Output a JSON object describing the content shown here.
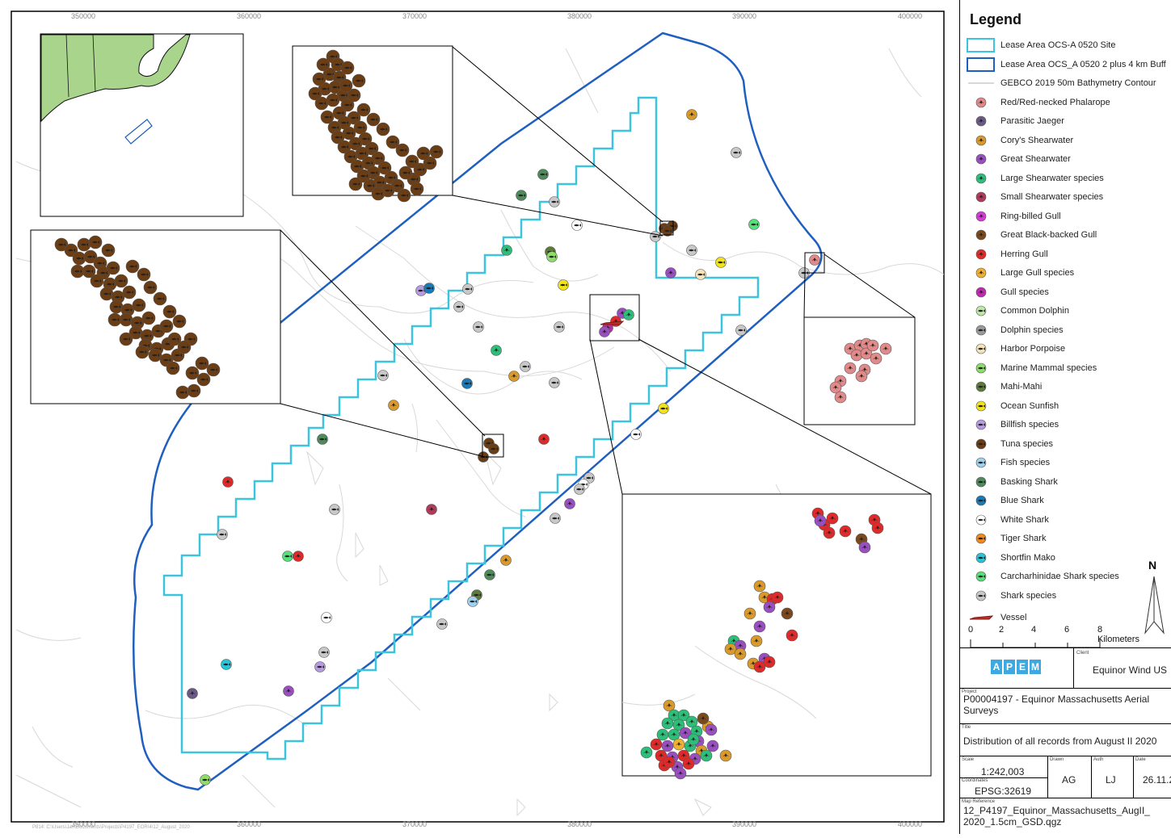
{
  "map": {
    "top_ticks": [
      "350000",
      "360000",
      "370000",
      "380000",
      "390000",
      "400000"
    ],
    "bottom_ticks": [
      "350000",
      "360000",
      "370000",
      "380000",
      "390000",
      "400000"
    ],
    "footer_path": "P814: C:\\Users\\Jan\\Documents\\Projects\\P4197_EOR\\4\\12_August_2020"
  },
  "legend": {
    "title": "Legend",
    "items": [
      {
        "label": "Lease Area OCS-A 0520 Site",
        "symbol": "box",
        "color": "#3cc4de"
      },
      {
        "label": "Lease Area OCS_A 0520 2 plus 4 km Buff",
        "symbol": "box",
        "color": "#1f5fbf"
      },
      {
        "label": "GEBCO 2019 50m Bathymetry Contour",
        "symbol": "line",
        "color": "#cccccc"
      },
      {
        "label": "Red/Red-necked Phalarope",
        "symbol": "bird-icon",
        "color": "#e08a8a"
      },
      {
        "label": "Parasitic Jaeger",
        "symbol": "bird-icon",
        "color": "#6b5a86"
      },
      {
        "label": "Cory's Shearwater",
        "symbol": "bird-icon",
        "color": "#d99a2b"
      },
      {
        "label": "Great Shearwater",
        "symbol": "bird-icon",
        "color": "#9a4fc0"
      },
      {
        "label": "Large Shearwater species",
        "symbol": "bird-icon",
        "color": "#2dbf7a"
      },
      {
        "label": "Small Shearwater species",
        "symbol": "bird-icon",
        "color": "#b03a5b"
      },
      {
        "label": "Ring-billed Gull",
        "symbol": "bird-icon",
        "color": "#d63ad6"
      },
      {
        "label": "Great Black-backed Gull",
        "symbol": "bird-icon",
        "color": "#7a4a1e"
      },
      {
        "label": "Herring Gull",
        "symbol": "bird-icon",
        "color": "#e02a2a"
      },
      {
        "label": "Large Gull species",
        "symbol": "bird-icon",
        "color": "#f0b030"
      },
      {
        "label": "Gull species",
        "symbol": "bird-icon",
        "color": "#c02ab0"
      },
      {
        "label": "Common Dolphin",
        "symbol": "fish-icon",
        "color": "#bde8a8"
      },
      {
        "label": "Dolphin species",
        "symbol": "fish-icon",
        "color": "#9a9a9a"
      },
      {
        "label": "Harbor Porpoise",
        "symbol": "fish-icon",
        "color": "#f4e2b8"
      },
      {
        "label": "Marine Mammal species",
        "symbol": "fish-icon",
        "color": "#8edc6a"
      },
      {
        "label": "Mahi-Mahi",
        "symbol": "fish-icon",
        "color": "#5e7a3a"
      },
      {
        "label": "Ocean Sunfish",
        "symbol": "fish-icon",
        "color": "#f2e21a"
      },
      {
        "label": "Billfish species",
        "symbol": "fish-icon",
        "color": "#b79be0"
      },
      {
        "label": "Tuna species",
        "symbol": "fish-icon",
        "color": "#6b3d14"
      },
      {
        "label": "Fish species",
        "symbol": "fish-icon",
        "color": "#9fd0ee"
      },
      {
        "label": "Basking Shark",
        "symbol": "fish-icon",
        "color": "#4e8a5a"
      },
      {
        "label": "Blue Shark",
        "symbol": "fish-icon",
        "color": "#1a7ab8"
      },
      {
        "label": "White Shark",
        "symbol": "fish-icon",
        "color": "#ffffff"
      },
      {
        "label": "Tiger Shark",
        "symbol": "fish-icon",
        "color": "#f08a1a"
      },
      {
        "label": "Shortfin Mako",
        "symbol": "fish-icon",
        "color": "#2ac4d8"
      },
      {
        "label": "Carcharhinidae Shark species",
        "symbol": "fish-icon",
        "color": "#56e07a"
      },
      {
        "label": "Shark species",
        "symbol": "fish-icon",
        "color": "#c8c8c8"
      },
      {
        "label": "Vessel",
        "symbol": "vessel-icon",
        "color": "#c0302a"
      }
    ]
  },
  "scalebar": {
    "labels": [
      "0",
      "2",
      "4",
      "6",
      "8 Kilometers"
    ]
  },
  "north_label": "N",
  "info": {
    "company_logo_text": "APEM",
    "client_caption": "Client",
    "client": "Equinor Wind US",
    "project_caption": "Project",
    "project": "P00004197 - Equinor Massachusetts Aerial Surveys",
    "title_caption": "Title",
    "title": "Distribution of all records from August II 2020",
    "scale_caption": "Scale",
    "scale": "1:242,003",
    "coords_caption": "Coordinates",
    "coords": "EPSG:32619",
    "drawn_caption": "Drawn",
    "drawn": "AG",
    "auth_caption": "Auth",
    "auth": "LJ",
    "date_caption": "Date",
    "date": "26.11.2",
    "mapref_caption": "Map Reference",
    "mapref": "12_P4197_Equinor_Massachusetts_AugII_ 2020_1.5cm_GSD.qgz"
  }
}
